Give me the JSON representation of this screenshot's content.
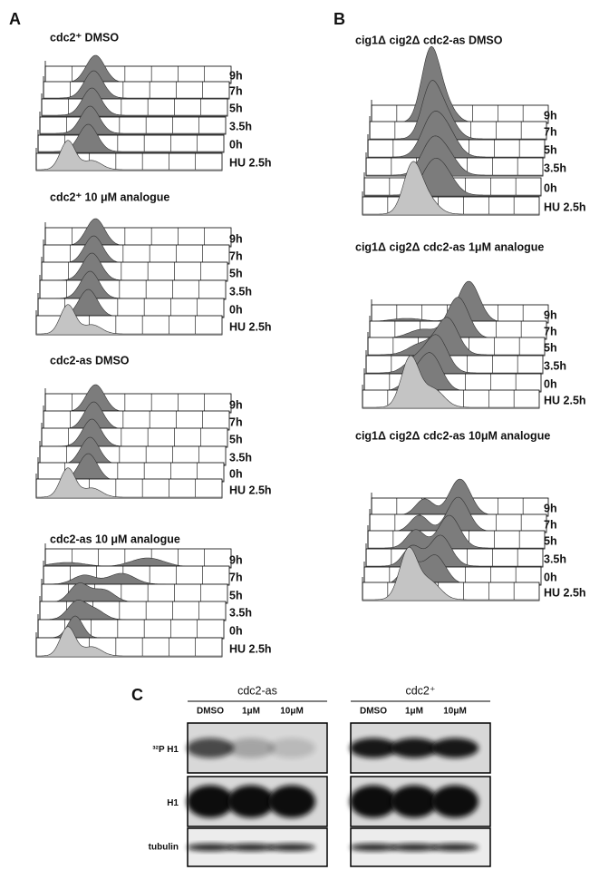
{
  "panels": [
    {
      "label": "A",
      "plots": [
        {
          "title": "cdc2⁺ DMSO",
          "time_labels": [
            "9h",
            "7h",
            "5h",
            "3.5h",
            "0h",
            "HU 2.5h"
          ]
        },
        {
          "title": "cdc2⁺ 10 μM analogue",
          "time_labels": [
            "9h",
            "7h",
            "5h",
            "3.5h",
            "0h",
            "HU 2.5h"
          ]
        },
        {
          "title": "cdc2-as DMSO",
          "time_labels": [
            "9h",
            "7h",
            "5h",
            "3.5h",
            "0h",
            "HU 2.5h"
          ]
        },
        {
          "title": "cdc2-as 10 μM analogue",
          "time_labels": [
            "9h",
            "7h",
            "5h",
            "3.5h",
            "0h",
            "HU 2.5h"
          ]
        }
      ]
    },
    {
      "label": "B",
      "plots": [
        {
          "title": "cig1Δ cig2Δ  cdc2-as DMSO",
          "time_labels": [
            "9h",
            "7h",
            "5h",
            "3.5h",
            "0h",
            "HU 2.5h"
          ]
        },
        {
          "title": "cig1Δ cig2Δ cdc2-as 1μM analogue",
          "time_labels": [
            "9h",
            "7h",
            "5h",
            "3.5h",
            "0h",
            "HU 2.5h"
          ]
        },
        {
          "title": "cig1Δ cig2Δ cdc2-as 10μM analogue",
          "time_labels": [
            "9h",
            "7h",
            "5h",
            "3.5h",
            "0h",
            "HU 2.5h"
          ]
        }
      ]
    }
  ],
  "blot": {
    "label": "C",
    "groups": [
      {
        "name": "cdc2-as",
        "lanes": [
          "DMSO",
          "1μM",
          "10μM"
        ]
      },
      {
        "name": "cdc2⁺",
        "lanes": [
          "DMSO",
          "1μM",
          "10μM"
        ]
      }
    ],
    "rows": [
      "³²P H1",
      "H1",
      "tubulin"
    ]
  }
}
